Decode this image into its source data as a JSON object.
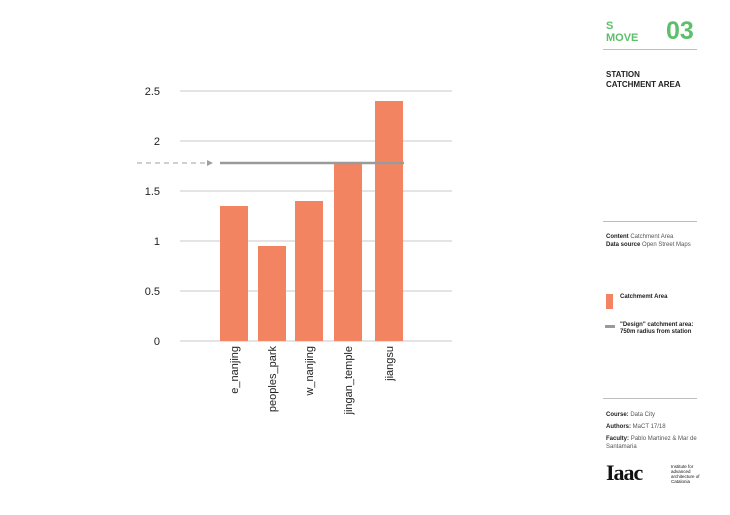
{
  "header": {
    "s_label": "S",
    "section_word": "MOVE",
    "section_number": "03",
    "title_line1": "STATION",
    "title_line2": "CATCHMENT AREA"
  },
  "info": {
    "content_label": "Content",
    "content_value": "Catchment Area",
    "source_label": "Data source",
    "source_value": "Open Street Maps"
  },
  "legend": {
    "bar_label": "Catchmemt Area",
    "line_label": "\"Design\" catchment area: 750m radius from station",
    "bar_color": "#f28462",
    "line_color": "#9a9a9a"
  },
  "credits": {
    "course_label": "Course:",
    "course_value": "Data City",
    "authors_label": "Authors:",
    "authors_value": "MaCT 17/18",
    "faculty_label": "Faculty:",
    "faculty_value": "Pablo Martinez  & Mar de Santamaria"
  },
  "logo": {
    "mark": "Iaac",
    "text": "Institute for advanced architecture of Catalonia"
  },
  "chart_data": {
    "type": "bar",
    "categories": [
      "e_nanjing",
      "peoples_park",
      "w_nanjing",
      "jingan_temple",
      "jiangsu"
    ],
    "values": [
      1.35,
      0.95,
      1.4,
      1.78,
      2.4
    ],
    "ylim": [
      0,
      2.5
    ],
    "yticks": [
      "0",
      "0.5",
      "1",
      "1.5",
      "2",
      "2.5"
    ],
    "reference_line": 1.78,
    "grid": true,
    "bar_color": "#f28462",
    "grid_color": "#c8c8c8"
  }
}
